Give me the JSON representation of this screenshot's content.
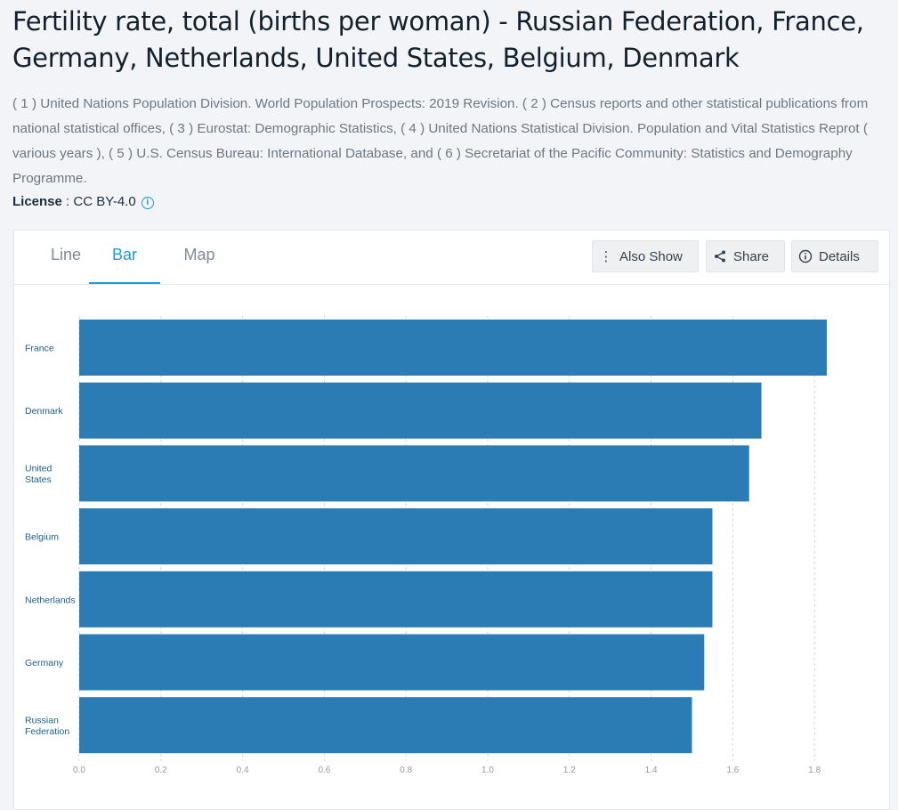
{
  "header": {
    "title": "Fertility rate, total (births per woman) - Russian Federation, France, Germany, Netherlands, United States, Belgium, Denmark",
    "sources": "( 1 ) United Nations Population Division. World Population Prospects: 2019 Revision. ( 2 ) Census reports and other statistical publications from national statistical offices, ( 3 ) Eurostat: Demographic Statistics, ( 4 ) United Nations Statistical Division. Population and Vital Statistics Reprot ( various years ), ( 5 ) U.S. Census Bureau: International Database, and ( 6 ) Secretariat of the Pacific Community: Statistics and Demography Programme.",
    "license_label": "License",
    "license_value": " : CC BY-4.0"
  },
  "tabs": [
    {
      "label": "Line",
      "active": false
    },
    {
      "label": "Bar",
      "active": true
    },
    {
      "label": "Map",
      "active": false
    }
  ],
  "toolbar": {
    "also_show": "Also Show",
    "share": "Share",
    "details": "Details"
  },
  "colors": {
    "bar": "#2b7bb4",
    "accent": "#1e9bd7",
    "category_label": "#1b5f8c",
    "tick_label": "#999999"
  },
  "chart_data": {
    "type": "bar",
    "orientation": "horizontal",
    "categories": [
      "France",
      "Denmark",
      "United States",
      "Belgium",
      "Netherlands",
      "Germany",
      "Russian Federation"
    ],
    "values": [
      1.83,
      1.67,
      1.64,
      1.55,
      1.55,
      1.53,
      1.5
    ],
    "xlim": [
      0,
      1.8
    ],
    "xticks": [
      "0.0",
      "0.2",
      "0.4",
      "0.6",
      "0.8",
      "1.0",
      "1.2",
      "1.4",
      "1.6",
      "1.8"
    ],
    "grid": true
  }
}
